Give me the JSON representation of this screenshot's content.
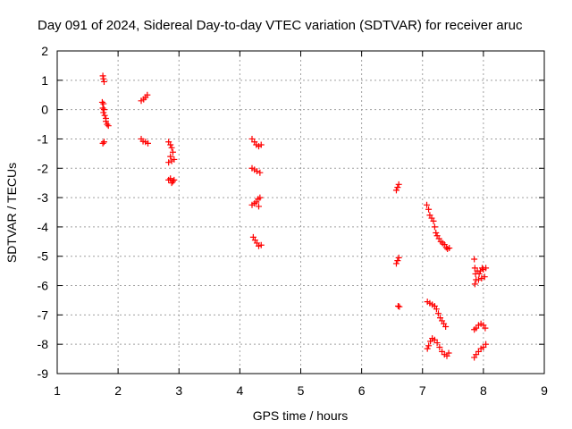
{
  "chart_data": {
    "type": "scatter",
    "title": "Day 091 of 2024, Sidereal Day-to-day VTEC variation (SDTVAR) for receiver aruc",
    "xlabel": "GPS time / hours",
    "ylabel": "SDTVAR / TECUs",
    "xlim": [
      1,
      9
    ],
    "ylim": [
      -9,
      2
    ],
    "xticks": [
      "1",
      "2",
      "3",
      "4",
      "5",
      "6",
      "7",
      "8",
      "9"
    ],
    "yticks": [
      "2",
      "1",
      "0",
      "-1",
      "-2",
      "-3",
      "-4",
      "-5",
      "-6",
      "-7",
      "-8",
      "-9"
    ],
    "grid": true,
    "marker": "plus",
    "color": "#ff0000",
    "series": [
      {
        "name": "SDTVAR",
        "points": [
          [
            1.75,
            1.15
          ],
          [
            1.76,
            1.05
          ],
          [
            1.77,
            0.95
          ],
          [
            1.74,
            0.25
          ],
          [
            1.76,
            0.2
          ],
          [
            1.75,
            0.05
          ],
          [
            1.77,
            0.0
          ],
          [
            1.76,
            -0.1
          ],
          [
            1.78,
            -0.2
          ],
          [
            1.8,
            -0.3
          ],
          [
            1.8,
            -0.4
          ],
          [
            1.82,
            -0.5
          ],
          [
            1.84,
            -0.55
          ],
          [
            1.75,
            -1.15
          ],
          [
            1.77,
            -1.1
          ],
          [
            2.38,
            0.3
          ],
          [
            2.42,
            0.35
          ],
          [
            2.45,
            0.42
          ],
          [
            2.48,
            0.5
          ],
          [
            2.38,
            -1.0
          ],
          [
            2.41,
            -1.08
          ],
          [
            2.45,
            -1.1
          ],
          [
            2.49,
            -1.15
          ],
          [
            2.83,
            -1.1
          ],
          [
            2.86,
            -1.2
          ],
          [
            2.88,
            -1.3
          ],
          [
            2.9,
            -1.45
          ],
          [
            2.86,
            -1.6
          ],
          [
            2.88,
            -1.75
          ],
          [
            2.83,
            -1.8
          ],
          [
            2.92,
            -1.7
          ],
          [
            2.83,
            -2.4
          ],
          [
            2.86,
            -2.35
          ],
          [
            2.9,
            -2.45
          ],
          [
            2.88,
            -2.5
          ],
          [
            2.92,
            -2.4
          ],
          [
            4.2,
            -1.0
          ],
          [
            4.24,
            -1.1
          ],
          [
            4.27,
            -1.2
          ],
          [
            4.31,
            -1.25
          ],
          [
            4.35,
            -1.2
          ],
          [
            4.2,
            -2.0
          ],
          [
            4.24,
            -2.05
          ],
          [
            4.28,
            -2.1
          ],
          [
            4.33,
            -2.15
          ],
          [
            4.2,
            -3.25
          ],
          [
            4.24,
            -3.2
          ],
          [
            4.27,
            -3.15
          ],
          [
            4.3,
            -3.05
          ],
          [
            4.33,
            -3.0
          ],
          [
            4.31,
            -3.3
          ],
          [
            4.22,
            -4.35
          ],
          [
            4.25,
            -4.45
          ],
          [
            4.28,
            -4.55
          ],
          [
            4.31,
            -4.65
          ],
          [
            4.35,
            -4.62
          ],
          [
            6.57,
            -2.75
          ],
          [
            6.59,
            -2.65
          ],
          [
            6.61,
            -2.55
          ],
          [
            6.57,
            -5.25
          ],
          [
            6.59,
            -5.15
          ],
          [
            6.61,
            -5.05
          ],
          [
            6.6,
            -6.7
          ],
          [
            6.62,
            -6.72
          ],
          [
            7.07,
            -3.25
          ],
          [
            7.1,
            -3.4
          ],
          [
            7.12,
            -3.6
          ],
          [
            7.15,
            -3.7
          ],
          [
            7.18,
            -3.8
          ],
          [
            7.2,
            -4.0
          ],
          [
            7.22,
            -4.2
          ],
          [
            7.24,
            -4.3
          ],
          [
            7.27,
            -4.4
          ],
          [
            7.3,
            -4.5
          ],
          [
            7.33,
            -4.55
          ],
          [
            7.36,
            -4.6
          ],
          [
            7.39,
            -4.7
          ],
          [
            7.41,
            -4.75
          ],
          [
            7.44,
            -4.72
          ],
          [
            7.08,
            -6.55
          ],
          [
            7.12,
            -6.6
          ],
          [
            7.16,
            -6.65
          ],
          [
            7.2,
            -6.7
          ],
          [
            7.23,
            -6.8
          ],
          [
            7.26,
            -6.95
          ],
          [
            7.29,
            -7.1
          ],
          [
            7.32,
            -7.2
          ],
          [
            7.35,
            -7.3
          ],
          [
            7.38,
            -7.4
          ],
          [
            7.08,
            -8.15
          ],
          [
            7.1,
            -8.05
          ],
          [
            7.13,
            -7.9
          ],
          [
            7.16,
            -7.8
          ],
          [
            7.2,
            -7.85
          ],
          [
            7.24,
            -7.95
          ],
          [
            7.28,
            -8.1
          ],
          [
            7.32,
            -8.25
          ],
          [
            7.36,
            -8.35
          ],
          [
            7.4,
            -8.4
          ],
          [
            7.43,
            -8.3
          ],
          [
            7.85,
            -5.1
          ],
          [
            7.86,
            -5.4
          ],
          [
            7.87,
            -5.6
          ],
          [
            7.88,
            -5.8
          ],
          [
            7.86,
            -5.95
          ],
          [
            7.9,
            -5.5
          ],
          [
            7.93,
            -5.6
          ],
          [
            7.95,
            -5.5
          ],
          [
            7.97,
            -5.75
          ],
          [
            8.0,
            -5.45
          ],
          [
            8.02,
            -5.7
          ],
          [
            8.04,
            -5.4
          ],
          [
            7.92,
            -5.8
          ],
          [
            7.98,
            -5.4
          ],
          [
            7.85,
            -7.5
          ],
          [
            7.88,
            -7.45
          ],
          [
            7.92,
            -7.35
          ],
          [
            7.96,
            -7.3
          ],
          [
            8.0,
            -7.35
          ],
          [
            8.03,
            -7.45
          ],
          [
            7.85,
            -8.45
          ],
          [
            7.88,
            -8.35
          ],
          [
            7.92,
            -8.25
          ],
          [
            7.96,
            -8.15
          ],
          [
            8.0,
            -8.1
          ],
          [
            8.04,
            -8.0
          ]
        ]
      }
    ]
  }
}
